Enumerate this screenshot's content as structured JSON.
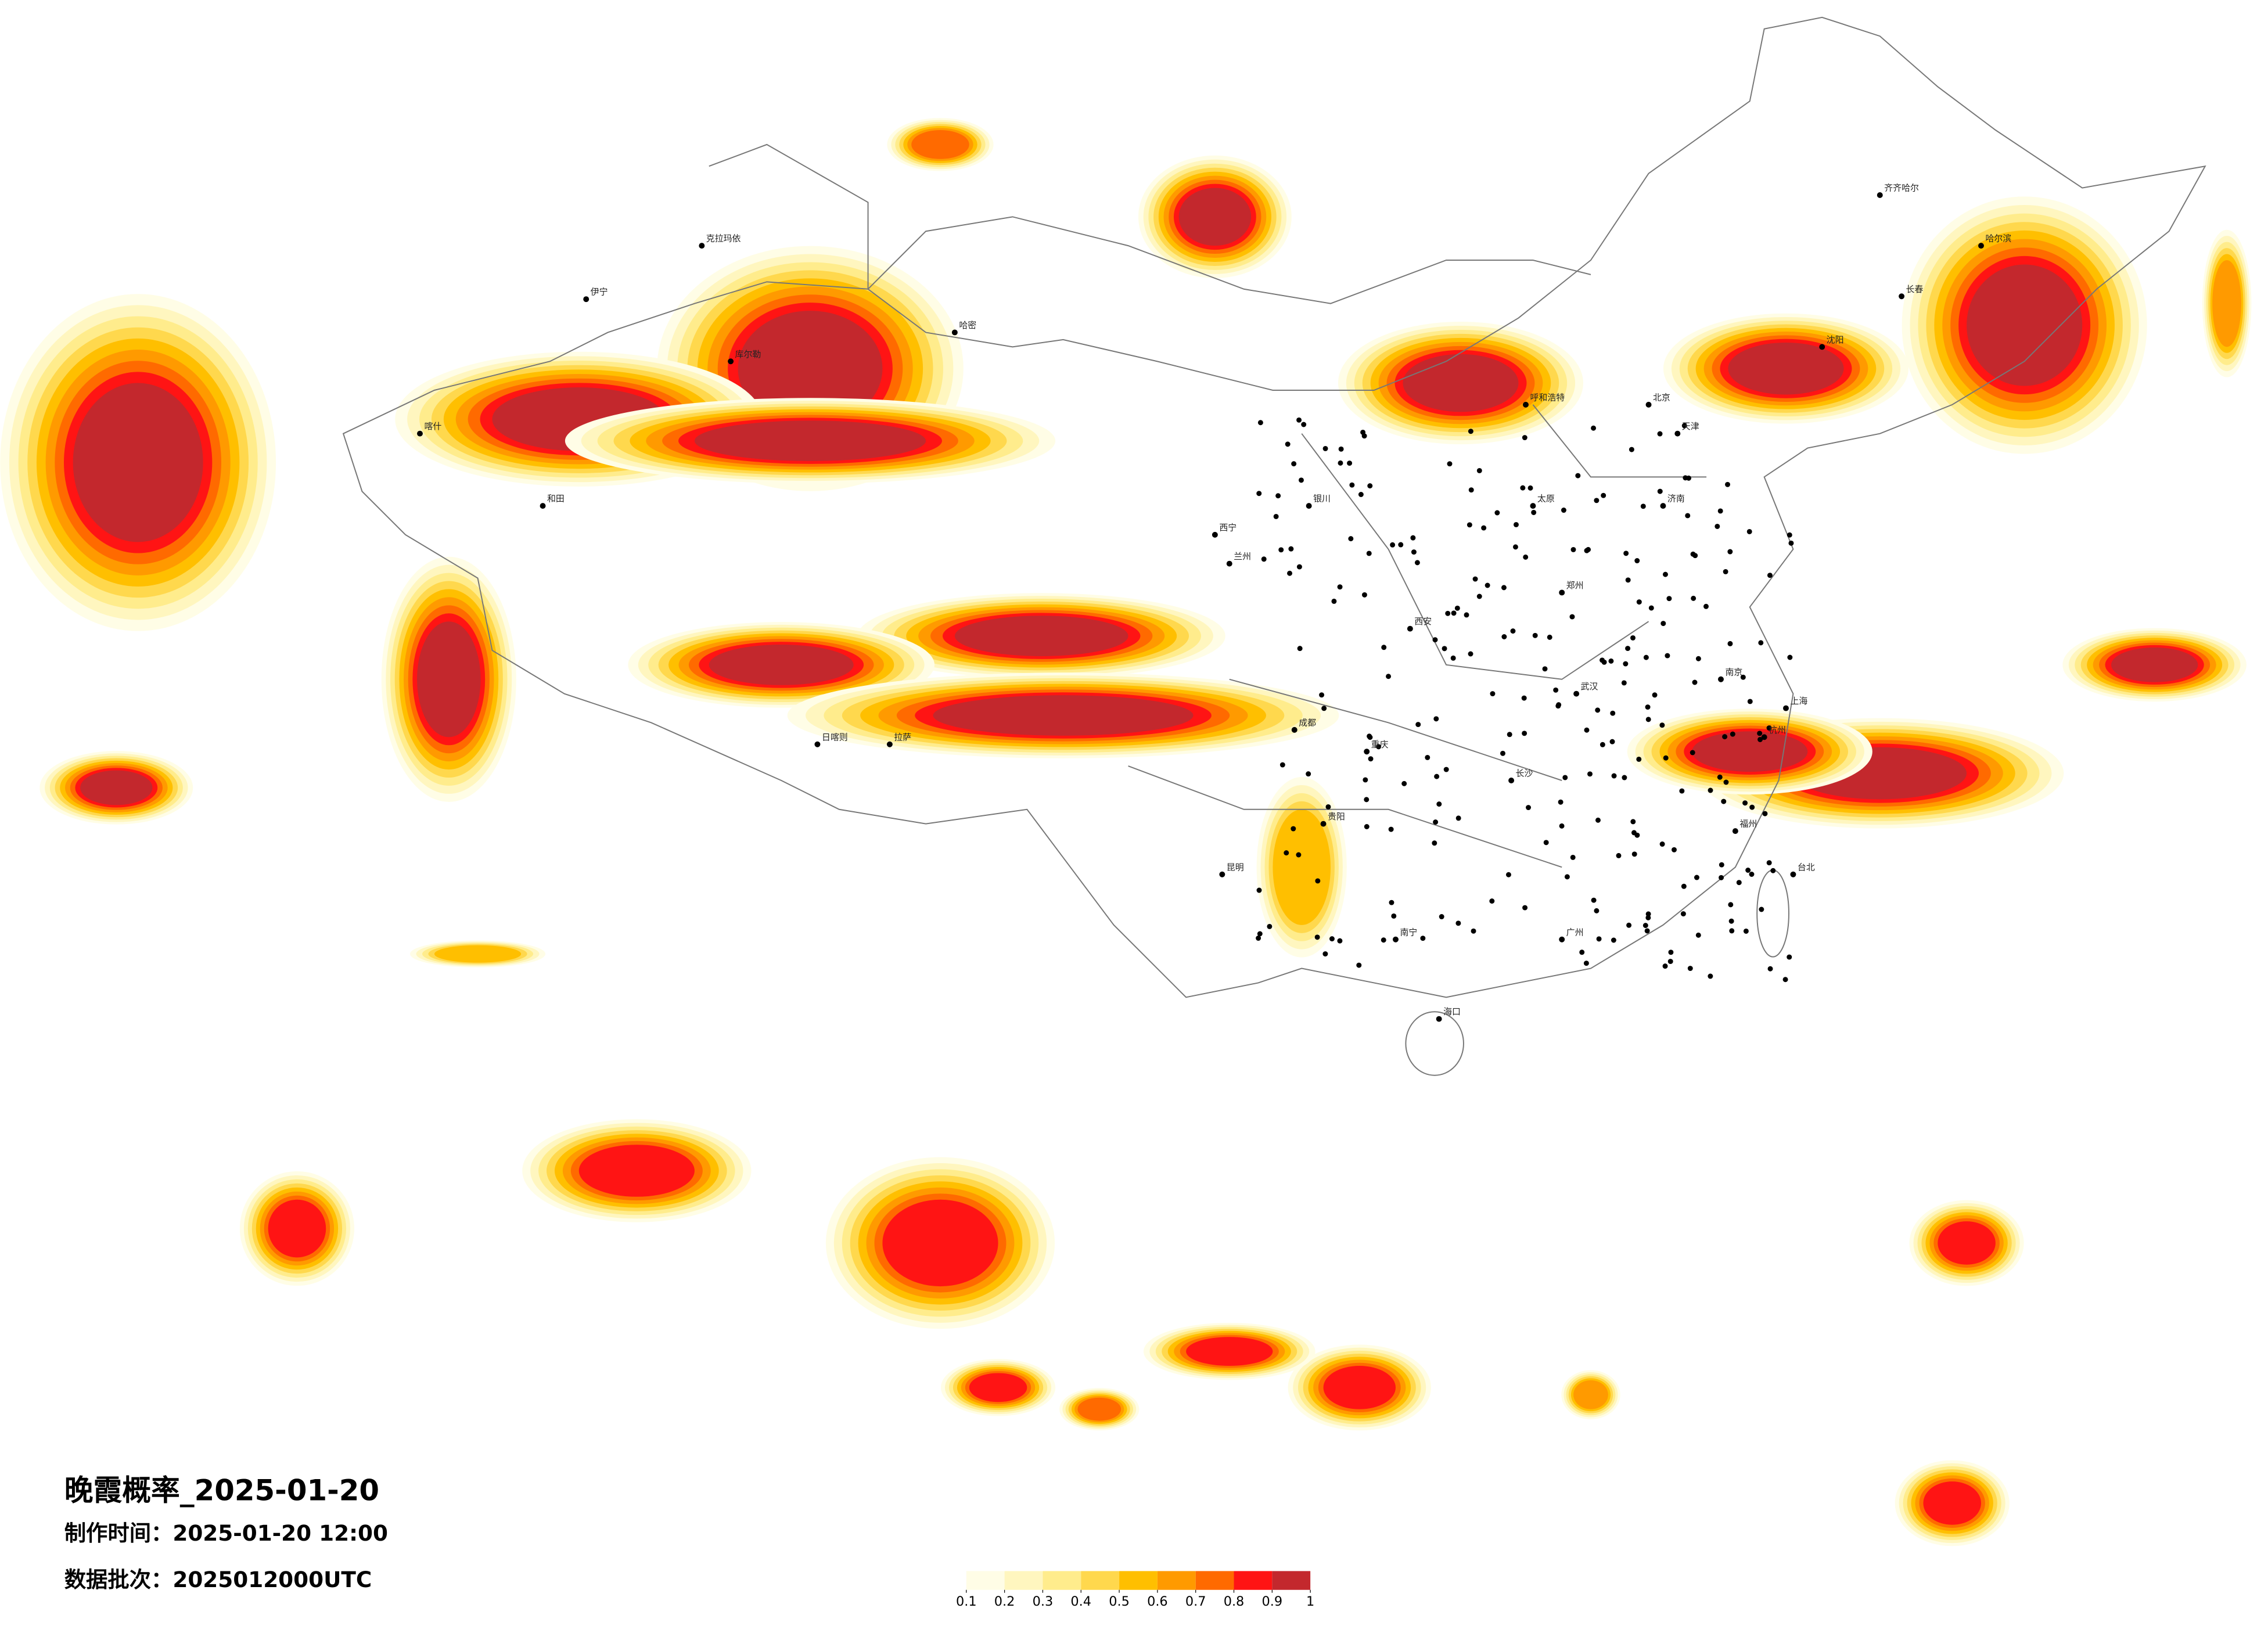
{
  "map": {
    "title": "晚霞概率_2025-01-20",
    "made_time": "制作时间：2025-01-20 12:00",
    "batch": "数据批次：2025012000UTC",
    "cities": [
      "伊宁",
      "克拉玛依",
      "库尔勒",
      "和田",
      "喀什",
      "哈密",
      "日喀则",
      "拉萨",
      "西宁",
      "兰州",
      "成都",
      "重庆",
      "昆明",
      "贵阳",
      "南宁",
      "海口",
      "广州",
      "长沙",
      "武汉",
      "郑州",
      "西安",
      "北京",
      "天津",
      "沈阳",
      "长春",
      "哈尔滨",
      "齐齐哈尔",
      "上海",
      "南京",
      "杭州",
      "福州",
      "台北",
      "济南",
      "太原",
      "呼和浩特",
      "银川"
    ]
  },
  "legend": {
    "ticks": [
      0.1,
      0.2,
      0.3,
      0.4,
      0.5,
      0.6,
      0.7,
      0.8,
      0.9,
      1
    ],
    "colors": [
      "#fffde6",
      "#fff6bf",
      "#ffec8c",
      "#ffd84d",
      "#ffbf00",
      "#ff9a00",
      "#ff6a00",
      "#ff1414",
      "#c3282d"
    ]
  }
}
